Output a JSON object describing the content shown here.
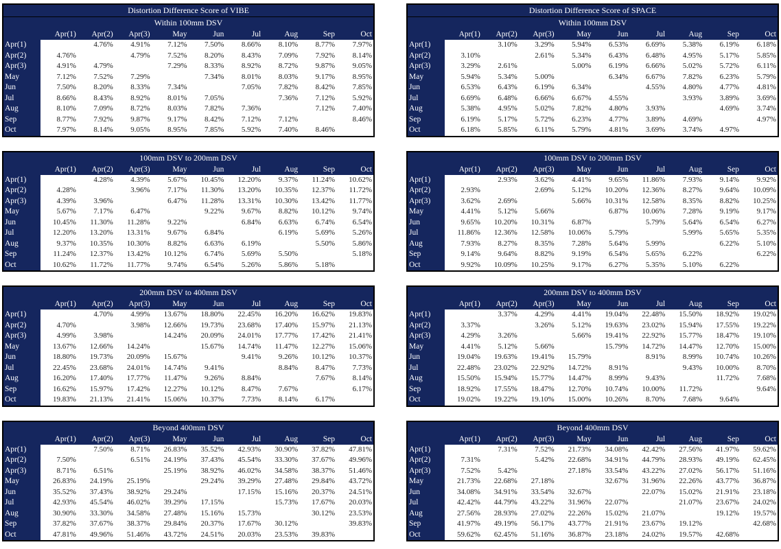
{
  "colors": {
    "header_bg": "#15265E",
    "header_text": "#FFFFFF",
    "cell_text": "#1A1A1A",
    "border": "#000000",
    "cell_bg": "#FFFFFF"
  },
  "months": [
    "Apr(1)",
    "Apr(2)",
    "Apr(3)",
    "May",
    "Jun",
    "Jul",
    "Aug",
    "Sep",
    "Oct"
  ],
  "tables": [
    {
      "id": "vibe",
      "title": "Distortion Difference Score of VIBE",
      "sections": [
        {
          "name": "Within 100mm DSV",
          "matrix": [
            [
              "",
              "4.76%",
              "4.91%",
              "7.12%",
              "7.50%",
              "8.66%",
              "8.10%",
              "8.77%",
              "7.97%"
            ],
            [
              "4.76%",
              "",
              "4.79%",
              "7.52%",
              "8.20%",
              "8.43%",
              "7.09%",
              "7.92%",
              "8.14%"
            ],
            [
              "4.91%",
              "4.79%",
              "",
              "7.29%",
              "8.33%",
              "8.92%",
              "8.72%",
              "9.87%",
              "9.05%"
            ],
            [
              "7.12%",
              "7.52%",
              "7.29%",
              "",
              "7.34%",
              "8.01%",
              "8.03%",
              "9.17%",
              "8.95%"
            ],
            [
              "7.50%",
              "8.20%",
              "8.33%",
              "7.34%",
              "",
              "7.05%",
              "7.82%",
              "8.42%",
              "7.85%"
            ],
            [
              "8.66%",
              "8.43%",
              "8.92%",
              "8.01%",
              "7.05%",
              "",
              "7.36%",
              "7.12%",
              "5.92%"
            ],
            [
              "8.10%",
              "7.09%",
              "8.72%",
              "8.03%",
              "7.82%",
              "7.36%",
              "",
              "7.12%",
              "7.40%"
            ],
            [
              "8.77%",
              "7.92%",
              "9.87%",
              "9.17%",
              "8.42%",
              "7.12%",
              "7.12%",
              "",
              "8.46%"
            ],
            [
              "7.97%",
              "8.14%",
              "9.05%",
              "8.95%",
              "7.85%",
              "5.92%",
              "7.40%",
              "8.46%",
              ""
            ]
          ]
        },
        {
          "name": "100mm DSV to 200mm DSV",
          "matrix": [
            [
              "",
              "4.28%",
              "4.39%",
              "5.67%",
              "10.45%",
              "12.20%",
              "9.37%",
              "11.24%",
              "10.62%"
            ],
            [
              "4.28%",
              "",
              "3.96%",
              "7.17%",
              "11.30%",
              "13.20%",
              "10.35%",
              "12.37%",
              "11.72%"
            ],
            [
              "4.39%",
              "3.96%",
              "",
              "6.47%",
              "11.28%",
              "13.31%",
              "10.30%",
              "13.42%",
              "11.77%"
            ],
            [
              "5.67%",
              "7.17%",
              "6.47%",
              "",
              "9.22%",
              "9.67%",
              "8.82%",
              "10.12%",
              "9.74%"
            ],
            [
              "10.45%",
              "11.30%",
              "11.28%",
              "9.22%",
              "",
              "6.84%",
              "6.63%",
              "6.74%",
              "6.54%"
            ],
            [
              "12.20%",
              "13.20%",
              "13.31%",
              "9.67%",
              "6.84%",
              "",
              "6.19%",
              "5.69%",
              "5.26%"
            ],
            [
              "9.37%",
              "10.35%",
              "10.30%",
              "8.82%",
              "6.63%",
              "6.19%",
              "",
              "5.50%",
              "5.86%"
            ],
            [
              "11.24%",
              "12.37%",
              "13.42%",
              "10.12%",
              "6.74%",
              "5.69%",
              "5.50%",
              "",
              "5.18%"
            ],
            [
              "10.62%",
              "11.72%",
              "11.77%",
              "9.74%",
              "6.54%",
              "5.26%",
              "5.86%",
              "5.18%",
              ""
            ]
          ]
        },
        {
          "name": "200mm DSV to 400mm DSV",
          "matrix": [
            [
              "",
              "4.70%",
              "4.99%",
              "13.67%",
              "18.80%",
              "22.45%",
              "16.20%",
              "16.62%",
              "19.83%"
            ],
            [
              "4.70%",
              "",
              "3.98%",
              "12.66%",
              "19.73%",
              "23.68%",
              "17.40%",
              "15.97%",
              "21.13%"
            ],
            [
              "4.99%",
              "3.98%",
              "",
              "14.24%",
              "20.09%",
              "24.01%",
              "17.77%",
              "17.42%",
              "21.41%"
            ],
            [
              "13.67%",
              "12.66%",
              "14.24%",
              "",
              "15.67%",
              "14.74%",
              "11.47%",
              "12.27%",
              "15.06%"
            ],
            [
              "18.80%",
              "19.73%",
              "20.09%",
              "15.67%",
              "",
              "9.41%",
              "9.26%",
              "10.12%",
              "10.37%"
            ],
            [
              "22.45%",
              "23.68%",
              "24.01%",
              "14.74%",
              "9.41%",
              "",
              "8.84%",
              "8.47%",
              "7.73%"
            ],
            [
              "16.20%",
              "17.40%",
              "17.77%",
              "11.47%",
              "9.26%",
              "8.84%",
              "",
              "7.67%",
              "8.14%"
            ],
            [
              "16.62%",
              "15.97%",
              "17.42%",
              "12.27%",
              "10.12%",
              "8.47%",
              "7.67%",
              "",
              "6.17%"
            ],
            [
              "19.83%",
              "21.13%",
              "21.41%",
              "15.06%",
              "10.37%",
              "7.73%",
              "8.14%",
              "6.17%",
              ""
            ]
          ]
        },
        {
          "name": "Beyond 400mm DSV",
          "matrix": [
            [
              "",
              "7.50%",
              "8.71%",
              "26.83%",
              "35.52%",
              "42.93%",
              "30.90%",
              "37.82%",
              "47.81%"
            ],
            [
              "7.50%",
              "",
              "6.51%",
              "24.19%",
              "37.43%",
              "45.54%",
              "33.30%",
              "37.67%",
              "49.96%"
            ],
            [
              "8.71%",
              "6.51%",
              "",
              "25.19%",
              "38.92%",
              "46.02%",
              "34.58%",
              "38.37%",
              "51.46%"
            ],
            [
              "26.83%",
              "24.19%",
              "25.19%",
              "",
              "29.24%",
              "39.29%",
              "27.48%",
              "29.84%",
              "43.72%"
            ],
            [
              "35.52%",
              "37.43%",
              "38.92%",
              "29.24%",
              "",
              "17.15%",
              "15.16%",
              "20.37%",
              "24.51%"
            ],
            [
              "42.93%",
              "45.54%",
              "46.02%",
              "39.29%",
              "17.15%",
              "",
              "15.73%",
              "17.67%",
              "20.03%"
            ],
            [
              "30.90%",
              "33.30%",
              "34.58%",
              "27.48%",
              "15.16%",
              "15.73%",
              "",
              "30.12%",
              "23.53%"
            ],
            [
              "37.82%",
              "37.67%",
              "38.37%",
              "29.84%",
              "20.37%",
              "17.67%",
              "30.12%",
              "",
              "39.83%"
            ],
            [
              "47.81%",
              "49.96%",
              "51.46%",
              "43.72%",
              "24.51%",
              "20.03%",
              "23.53%",
              "39.83%",
              ""
            ]
          ]
        }
      ]
    },
    {
      "id": "space",
      "title": "Distortion Difference Score of SPACE",
      "sections": [
        {
          "name": "Within 100mm DSV",
          "matrix": [
            [
              "",
              "3.10%",
              "3.29%",
              "5.94%",
              "6.53%",
              "6.69%",
              "5.38%",
              "6.19%",
              "6.18%"
            ],
            [
              "3.10%",
              "",
              "2.61%",
              "5.34%",
              "6.43%",
              "6.48%",
              "4.95%",
              "5.17%",
              "5.85%"
            ],
            [
              "3.29%",
              "2.61%",
              "",
              "5.00%",
              "6.19%",
              "6.66%",
              "5.02%",
              "5.72%",
              "6.11%"
            ],
            [
              "5.94%",
              "5.34%",
              "5.00%",
              "",
              "6.34%",
              "6.67%",
              "7.82%",
              "6.23%",
              "5.79%"
            ],
            [
              "6.53%",
              "6.43%",
              "6.19%",
              "6.34%",
              "",
              "4.55%",
              "4.80%",
              "4.77%",
              "4.81%"
            ],
            [
              "6.69%",
              "6.48%",
              "6.66%",
              "6.67%",
              "4.55%",
              "",
              "3.93%",
              "3.89%",
              "3.69%"
            ],
            [
              "5.38%",
              "4.95%",
              "5.02%",
              "7.82%",
              "4.80%",
              "3.93%",
              "",
              "4.69%",
              "3.74%"
            ],
            [
              "6.19%",
              "5.17%",
              "5.72%",
              "6.23%",
              "4.77%",
              "3.89%",
              "4.69%",
              "",
              "4.97%"
            ],
            [
              "6.18%",
              "5.85%",
              "6.11%",
              "5.79%",
              "4.81%",
              "3.69%",
              "3.74%",
              "4.97%",
              ""
            ]
          ]
        },
        {
          "name": "100mm DSV to 200mm DSV",
          "matrix": [
            [
              "",
              "2.93%",
              "3.62%",
              "4.41%",
              "9.65%",
              "11.86%",
              "7.93%",
              "9.14%",
              "9.92%"
            ],
            [
              "2.93%",
              "",
              "2.69%",
              "5.12%",
              "10.20%",
              "12.36%",
              "8.27%",
              "9.64%",
              "10.09%"
            ],
            [
              "3.62%",
              "2.69%",
              "",
              "5.66%",
              "10.31%",
              "12.58%",
              "8.35%",
              "8.82%",
              "10.25%"
            ],
            [
              "4.41%",
              "5.12%",
              "5.66%",
              "",
              "6.87%",
              "10.06%",
              "7.28%",
              "9.19%",
              "9.17%"
            ],
            [
              "9.65%",
              "10.20%",
              "10.31%",
              "6.87%",
              "",
              "5.79%",
              "5.64%",
              "6.54%",
              "6.27%"
            ],
            [
              "11.86%",
              "12.36%",
              "12.58%",
              "10.06%",
              "5.79%",
              "",
              "5.99%",
              "5.65%",
              "5.35%"
            ],
            [
              "7.93%",
              "8.27%",
              "8.35%",
              "7.28%",
              "5.64%",
              "5.99%",
              "",
              "6.22%",
              "5.10%"
            ],
            [
              "9.14%",
              "9.64%",
              "8.82%",
              "9.19%",
              "6.54%",
              "5.65%",
              "6.22%",
              "",
              "6.22%"
            ],
            [
              "9.92%",
              "10.09%",
              "10.25%",
              "9.17%",
              "6.27%",
              "5.35%",
              "5.10%",
              "6.22%",
              ""
            ]
          ]
        },
        {
          "name": "200mm DSV to 400mm DSV",
          "matrix": [
            [
              "",
              "3.37%",
              "4.29%",
              "4.41%",
              "19.04%",
              "22.48%",
              "15.50%",
              "18.92%",
              "19.02%"
            ],
            [
              "3.37%",
              "",
              "3.26%",
              "5.12%",
              "19.63%",
              "23.02%",
              "15.94%",
              "17.55%",
              "19.22%"
            ],
            [
              "4.29%",
              "3.26%",
              "",
              "5.66%",
              "19.41%",
              "22.92%",
              "15.77%",
              "18.47%",
              "19.10%"
            ],
            [
              "4.41%",
              "5.12%",
              "5.66%",
              "",
              "15.79%",
              "14.72%",
              "14.47%",
              "12.70%",
              "15.00%"
            ],
            [
              "19.04%",
              "19.63%",
              "19.41%",
              "15.79%",
              "",
              "8.91%",
              "8.99%",
              "10.74%",
              "10.26%"
            ],
            [
              "22.48%",
              "23.02%",
              "22.92%",
              "14.72%",
              "8.91%",
              "",
              "9.43%",
              "10.00%",
              "8.70%"
            ],
            [
              "15.50%",
              "15.94%",
              "15.77%",
              "14.47%",
              "8.99%",
              "9.43%",
              "",
              "11.72%",
              "7.68%"
            ],
            [
              "18.92%",
              "17.55%",
              "18.47%",
              "12.70%",
              "10.74%",
              "10.00%",
              "11.72%",
              "",
              "9.64%"
            ],
            [
              "19.02%",
              "19.22%",
              "19.10%",
              "15.00%",
              "10.26%",
              "8.70%",
              "7.68%",
              "9.64%",
              ""
            ]
          ]
        },
        {
          "name": "Beyond 400mm DSV",
          "matrix": [
            [
              "",
              "7.31%",
              "7.52%",
              "21.73%",
              "34.08%",
              "42.42%",
              "27.56%",
              "41.97%",
              "59.62%"
            ],
            [
              "7.31%",
              "",
              "5.42%",
              "22.68%",
              "34.91%",
              "44.79%",
              "28.93%",
              "49.19%",
              "62.45%"
            ],
            [
              "7.52%",
              "5.42%",
              "",
              "27.18%",
              "33.54%",
              "43.22%",
              "27.02%",
              "56.17%",
              "51.16%"
            ],
            [
              "21.73%",
              "22.68%",
              "27.18%",
              "",
              "32.67%",
              "31.96%",
              "22.26%",
              "43.77%",
              "36.87%"
            ],
            [
              "34.08%",
              "34.91%",
              "33.54%",
              "32.67%",
              "",
              "22.07%",
              "15.02%",
              "21.91%",
              "23.18%"
            ],
            [
              "42.42%",
              "44.79%",
              "43.22%",
              "31.96%",
              "22.07%",
              "",
              "21.07%",
              "23.67%",
              "24.02%"
            ],
            [
              "27.56%",
              "28.93%",
              "27.02%",
              "22.26%",
              "15.02%",
              "21.07%",
              "",
              "19.12%",
              "19.57%"
            ],
            [
              "41.97%",
              "49.19%",
              "56.17%",
              "43.77%",
              "21.91%",
              "23.67%",
              "19.12%",
              "",
              "42.68%"
            ],
            [
              "59.62%",
              "62.45%",
              "51.16%",
              "36.87%",
              "23.18%",
              "24.02%",
              "19.57%",
              "42.68%",
              ""
            ]
          ]
        }
      ]
    }
  ]
}
